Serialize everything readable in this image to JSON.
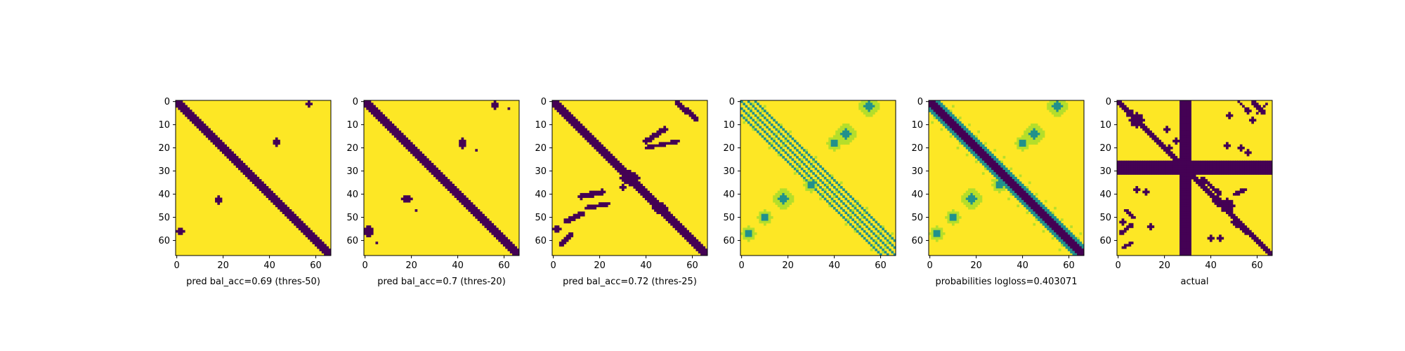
{
  "figure": {
    "colors": {
      "low": "#440154",
      "mid": "#21918c",
      "light": "#b5de2b",
      "high": "#fde725",
      "axis": "#000000"
    }
  },
  "chart_data": [
    {
      "type": "heatmap",
      "kind": "binary",
      "title": "",
      "xlabel": "pred bal_acc=0.69 (thres-50)",
      "ylabel": "",
      "size": 67,
      "xlim": [
        0,
        66
      ],
      "ylim": [
        66,
        0
      ],
      "xticks": [
        0,
        20,
        40,
        60
      ],
      "yticks": [
        0,
        10,
        20,
        30,
        40,
        50,
        60
      ],
      "diag_width": 2.2,
      "diag_shift": 0,
      "blobs": [
        {
          "x": 57,
          "y": 1,
          "rx": 1.5,
          "ry": 1.3
        },
        {
          "x": 43,
          "y": 17.5,
          "rx": 1.3,
          "ry": 1.8
        },
        {
          "x": 18,
          "y": 42.5,
          "rx": 1.4,
          "ry": 1.6
        },
        {
          "x": 1.5,
          "y": 56,
          "rx": 1.8,
          "ry": 1.3
        }
      ],
      "bands": []
    },
    {
      "type": "heatmap",
      "kind": "binary",
      "title": "",
      "xlabel": "pred bal_acc=0.7 (thres-20)",
      "ylabel": "",
      "size": 67,
      "xlim": [
        0,
        66
      ],
      "ylim": [
        66,
        0
      ],
      "xticks": [
        0,
        20,
        40,
        60
      ],
      "yticks": [
        0,
        10,
        20,
        30,
        40,
        50,
        60
      ],
      "diag_width": 2.5,
      "diag_shift": 0,
      "blobs": [
        {
          "x": 56,
          "y": 1.5,
          "rx": 1.8,
          "ry": 1.8
        },
        {
          "x": 62,
          "y": 3,
          "rx": 0.7,
          "ry": 0.7
        },
        {
          "x": 42,
          "y": 18,
          "rx": 1.5,
          "ry": 2
        },
        {
          "x": 48,
          "y": 21,
          "rx": 0.6,
          "ry": 0.6
        },
        {
          "x": 18,
          "y": 42,
          "rx": 2,
          "ry": 1.5
        },
        {
          "x": 22,
          "y": 47,
          "rx": 0.6,
          "ry": 0.6
        },
        {
          "x": 1.5,
          "y": 56,
          "rx": 1.8,
          "ry": 2.5
        },
        {
          "x": 5,
          "y": 61,
          "rx": 0.7,
          "ry": 0.7
        }
      ],
      "bands": []
    },
    {
      "type": "heatmap",
      "kind": "binary",
      "title": "",
      "xlabel": "pred bal_acc=0.72 (thres-25)",
      "ylabel": "",
      "size": 67,
      "xlim": [
        0,
        66
      ],
      "ylim": [
        66,
        0
      ],
      "xticks": [
        0,
        20,
        40,
        60
      ],
      "yticks": [
        0,
        10,
        20,
        30,
        40,
        50,
        60
      ],
      "diag_width": 2.8,
      "diag_shift": 0,
      "blobs": [
        {
          "x": 33,
          "y": 33,
          "rx": 4,
          "ry": 3
        },
        {
          "x": 46,
          "y": 46,
          "rx": 3,
          "ry": 2.5
        },
        {
          "x": 30,
          "y": 37,
          "rx": 1.2,
          "ry": 1
        },
        {
          "x": 1.5,
          "y": 55,
          "rx": 1.5,
          "ry": 1.3
        }
      ],
      "bands": [
        {
          "x1": 53,
          "y1": 0,
          "x2": 58,
          "y2": 5,
          "w": 0.9
        },
        {
          "x1": 57,
          "y1": 3,
          "x2": 62,
          "y2": 8,
          "w": 0.8
        },
        {
          "x1": 40,
          "y1": 17,
          "x2": 48,
          "y2": 12,
          "w": 1.1
        },
        {
          "x1": 40,
          "y1": 20,
          "x2": 54,
          "y2": 17,
          "w": 0.8
        },
        {
          "x1": 12,
          "y1": 41,
          "x2": 21,
          "y2": 39,
          "w": 1.1
        },
        {
          "x1": 14,
          "y1": 46,
          "x2": 24,
          "y2": 44,
          "w": 0.8
        },
        {
          "x1": 5,
          "y1": 52,
          "x2": 13,
          "y2": 48,
          "w": 0.9
        },
        {
          "x1": 3,
          "y1": 62,
          "x2": 8,
          "y2": 57,
          "w": 0.8
        }
      ]
    },
    {
      "type": "heatmap",
      "kind": "probability",
      "title": "",
      "xlabel": "",
      "ylabel": "",
      "size": 67,
      "xlim": [
        0,
        66
      ],
      "ylim": [
        66,
        0
      ],
      "xticks": [
        0,
        20,
        40,
        60
      ],
      "yticks": [
        0,
        10,
        20,
        30,
        40,
        50,
        60
      ],
      "diag_width": 0,
      "parallel_offsets": [
        0,
        3,
        -3,
        6,
        -6
      ],
      "cross": true,
      "anti_blobs": [
        {
          "x": 55,
          "y": 2,
          "r": 4
        },
        {
          "x": 45,
          "y": 14,
          "r": 4
        },
        {
          "x": 40,
          "y": 18,
          "r": 3
        },
        {
          "x": 30,
          "y": 36,
          "r": 3
        },
        {
          "x": 18,
          "y": 42,
          "r": 4
        },
        {
          "x": 10,
          "y": 50,
          "r": 3
        },
        {
          "x": 3,
          "y": 57,
          "r": 3
        }
      ]
    },
    {
      "type": "heatmap",
      "kind": "probability",
      "title": "",
      "xlabel": "probabilities logloss=0.403071",
      "ylabel": "",
      "size": 67,
      "xlim": [
        0,
        66
      ],
      "ylim": [
        66,
        0
      ],
      "xticks": [
        0,
        20,
        40,
        60
      ],
      "yticks": [
        0,
        10,
        20,
        30,
        40,
        50,
        60
      ],
      "diag_width": 2.8,
      "parallel_offsets": [],
      "cross": true,
      "anti_blobs": [
        {
          "x": 55,
          "y": 2,
          "r": 4
        },
        {
          "x": 45,
          "y": 14,
          "r": 4
        },
        {
          "x": 40,
          "y": 18,
          "r": 3
        },
        {
          "x": 30,
          "y": 36,
          "r": 3
        },
        {
          "x": 18,
          "y": 42,
          "r": 4
        },
        {
          "x": 10,
          "y": 50,
          "r": 3
        },
        {
          "x": 3,
          "y": 57,
          "r": 3
        }
      ]
    },
    {
      "type": "heatmap",
      "kind": "binary",
      "title": "",
      "xlabel": "actual",
      "ylabel": "",
      "size": 67,
      "xlim": [
        0,
        66
      ],
      "ylim": [
        66,
        0
      ],
      "xticks": [
        0,
        20,
        40,
        60
      ],
      "yticks": [
        0,
        10,
        20,
        30,
        40,
        50,
        60
      ],
      "diag_width": 1.6,
      "diag_shift": 0,
      "row_band": [
        26,
        31
      ],
      "col_band": [
        27,
        31
      ],
      "blobs": [
        {
          "x": 8,
          "y": 8,
          "rx": 3,
          "ry": 3
        },
        {
          "x": 5,
          "y": 5,
          "rx": 1.5,
          "ry": 1.5
        },
        {
          "x": 47,
          "y": 45,
          "rx": 3,
          "ry": 3
        },
        {
          "x": 43,
          "y": 43,
          "rx": 2,
          "ry": 2
        },
        {
          "x": 56,
          "y": 4,
          "rx": 1.2,
          "ry": 1.2
        },
        {
          "x": 48,
          "y": 6,
          "rx": 1,
          "ry": 1
        },
        {
          "x": 58,
          "y": 8,
          "rx": 1,
          "ry": 1
        },
        {
          "x": 21,
          "y": 12,
          "rx": 1,
          "ry": 1
        },
        {
          "x": 25,
          "y": 17,
          "rx": 1,
          "ry": 1
        },
        {
          "x": 22,
          "y": 20,
          "rx": 1,
          "ry": 1
        },
        {
          "x": 47,
          "y": 19,
          "rx": 1.1,
          "ry": 1.1
        },
        {
          "x": 53,
          "y": 20,
          "rx": 1,
          "ry": 1
        },
        {
          "x": 56,
          "y": 22,
          "rx": 1,
          "ry": 1
        },
        {
          "x": 8,
          "y": 38,
          "rx": 1.2,
          "ry": 1
        },
        {
          "x": 12,
          "y": 39,
          "rx": 1,
          "ry": 1
        },
        {
          "x": 2,
          "y": 52,
          "rx": 1,
          "ry": 1
        },
        {
          "x": 14,
          "y": 54,
          "rx": 1,
          "ry": 1
        },
        {
          "x": 40,
          "y": 59,
          "rx": 1.2,
          "ry": 1
        },
        {
          "x": 44,
          "y": 59,
          "rx": 1,
          "ry": 1
        }
      ],
      "bands": [
        {
          "x1": 58,
          "y1": 0,
          "x2": 63,
          "y2": 5,
          "w": 0.8
        },
        {
          "x1": 52,
          "y1": 0,
          "x2": 55,
          "y2": 3,
          "w": 0.7
        },
        {
          "x1": 60,
          "y1": 5,
          "x2": 64,
          "y2": 1,
          "w": 0.6
        },
        {
          "x1": 36,
          "y1": 33,
          "x2": 44,
          "y2": 40,
          "w": 0.9
        },
        {
          "x1": 50,
          "y1": 40,
          "x2": 55,
          "y2": 38,
          "w": 0.8
        },
        {
          "x1": 50,
          "y1": 52,
          "x2": 58,
          "y2": 58,
          "w": 1.0
        },
        {
          "x1": 1,
          "y1": 57,
          "x2": 6,
          "y2": 53,
          "w": 0.8
        },
        {
          "x1": 2,
          "y1": 63,
          "x2": 6,
          "y2": 61,
          "w": 0.7
        },
        {
          "x1": 3,
          "y1": 47,
          "x2": 7,
          "y2": 50,
          "w": 0.8
        }
      ]
    }
  ]
}
